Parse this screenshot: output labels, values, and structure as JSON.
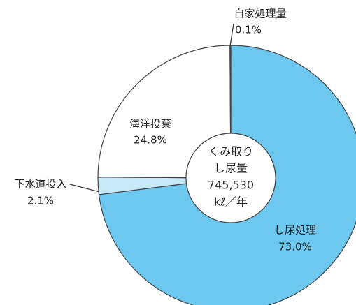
{
  "chart_data": {
    "type": "pie",
    "categories": [
      "し尿処理",
      "下水道投入",
      "海洋投棄",
      "自家処理量"
    ],
    "values": [
      73.0,
      2.1,
      24.8,
      0.1
    ],
    "value_labels": [
      "73.0%",
      "2.1%",
      "24.8%",
      "0.1%"
    ],
    "colors": [
      "#6dc8f0",
      "#c8e9f8",
      "#ffffff",
      "#ffffff"
    ],
    "center_text": [
      "くみ取り",
      "し尿量",
      "745,530",
      "kℓ／年"
    ]
  }
}
